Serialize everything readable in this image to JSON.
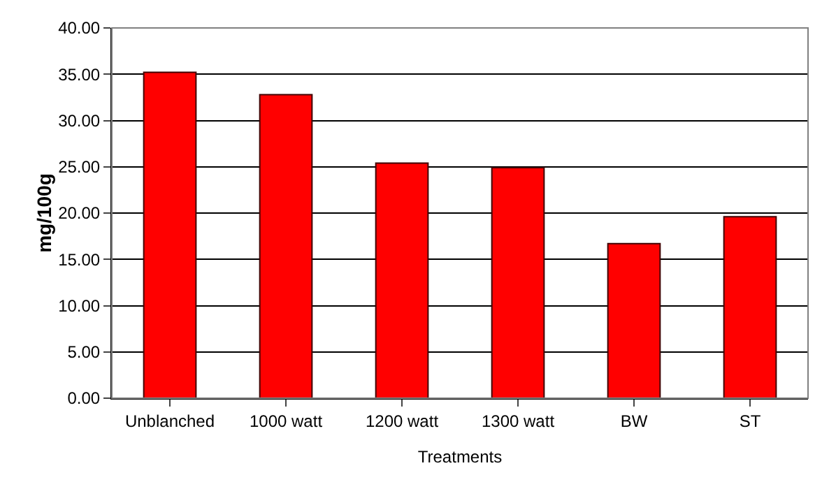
{
  "chart_data": {
    "type": "bar",
    "xlabel": "Treatments",
    "ylabel": "mg/100g",
    "categories": [
      "Unblanched",
      "1000 watt",
      "1200 watt",
      "1300 watt",
      "BW",
      "ST"
    ],
    "values": [
      35.2,
      32.8,
      25.4,
      24.9,
      16.7,
      19.6
    ],
    "color": "#ff0000",
    "ylim": [
      0,
      40
    ],
    "yticks": [
      {
        "value": 0,
        "label": "0.00"
      },
      {
        "value": 5,
        "label": "5.00"
      },
      {
        "value": 10,
        "label": "10.00"
      },
      {
        "value": 15,
        "label": "15.00"
      },
      {
        "value": 20,
        "label": "20.00"
      },
      {
        "value": 25,
        "label": "25.00"
      },
      {
        "value": 30,
        "label": "30.00"
      },
      {
        "value": 35,
        "label": "35.00"
      },
      {
        "value": 40,
        "label": "40.00"
      }
    ],
    "grid": "y",
    "legend": false
  }
}
